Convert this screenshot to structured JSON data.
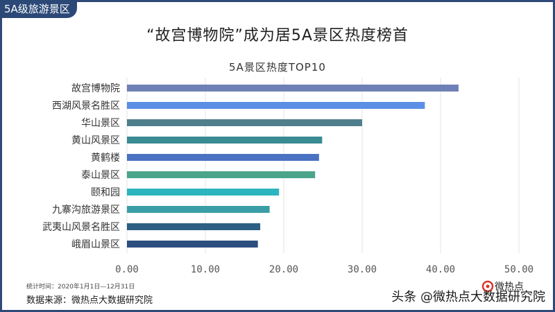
{
  "corner_tag": "5A级旅游景区",
  "headline": "“故宫博物院”成为居5A景区热度榜首",
  "footer": {
    "period": "统计时间：2020年1月1日—12月31日",
    "source": "数据来源：微热点大数据研究院",
    "watermark": "头条 @微热点大数据研究院",
    "logo_text": "微热点"
  },
  "chart_data": {
    "type": "bar",
    "orientation": "horizontal",
    "title": "5A景区热度TOP10",
    "xlabel": "",
    "ylabel": "",
    "categories": [
      "故宫博物院",
      "西湖风景名胜区",
      "华山景区",
      "黄山风景区",
      "黄鹤楼",
      "泰山景区",
      "颐和园",
      "九寨沟旅游景区",
      "武夷山风景名胜区",
      "峨眉山景区"
    ],
    "values": [
      42.3,
      38.0,
      30.0,
      24.9,
      24.5,
      24.0,
      19.4,
      18.2,
      17.0,
      16.7
    ],
    "colors": [
      "#6f80b6",
      "#5b8fe6",
      "#4f7f8c",
      "#3a8a93",
      "#4a72c2",
      "#4aa58b",
      "#2cb5bf",
      "#3a9ea6",
      "#2c5f83",
      "#2c4f7f"
    ],
    "xlim": [
      0,
      50
    ],
    "xticks": [
      "0.00",
      "10.00",
      "20.00",
      "30.00",
      "40.00",
      "50.00"
    ],
    "grid": true
  }
}
